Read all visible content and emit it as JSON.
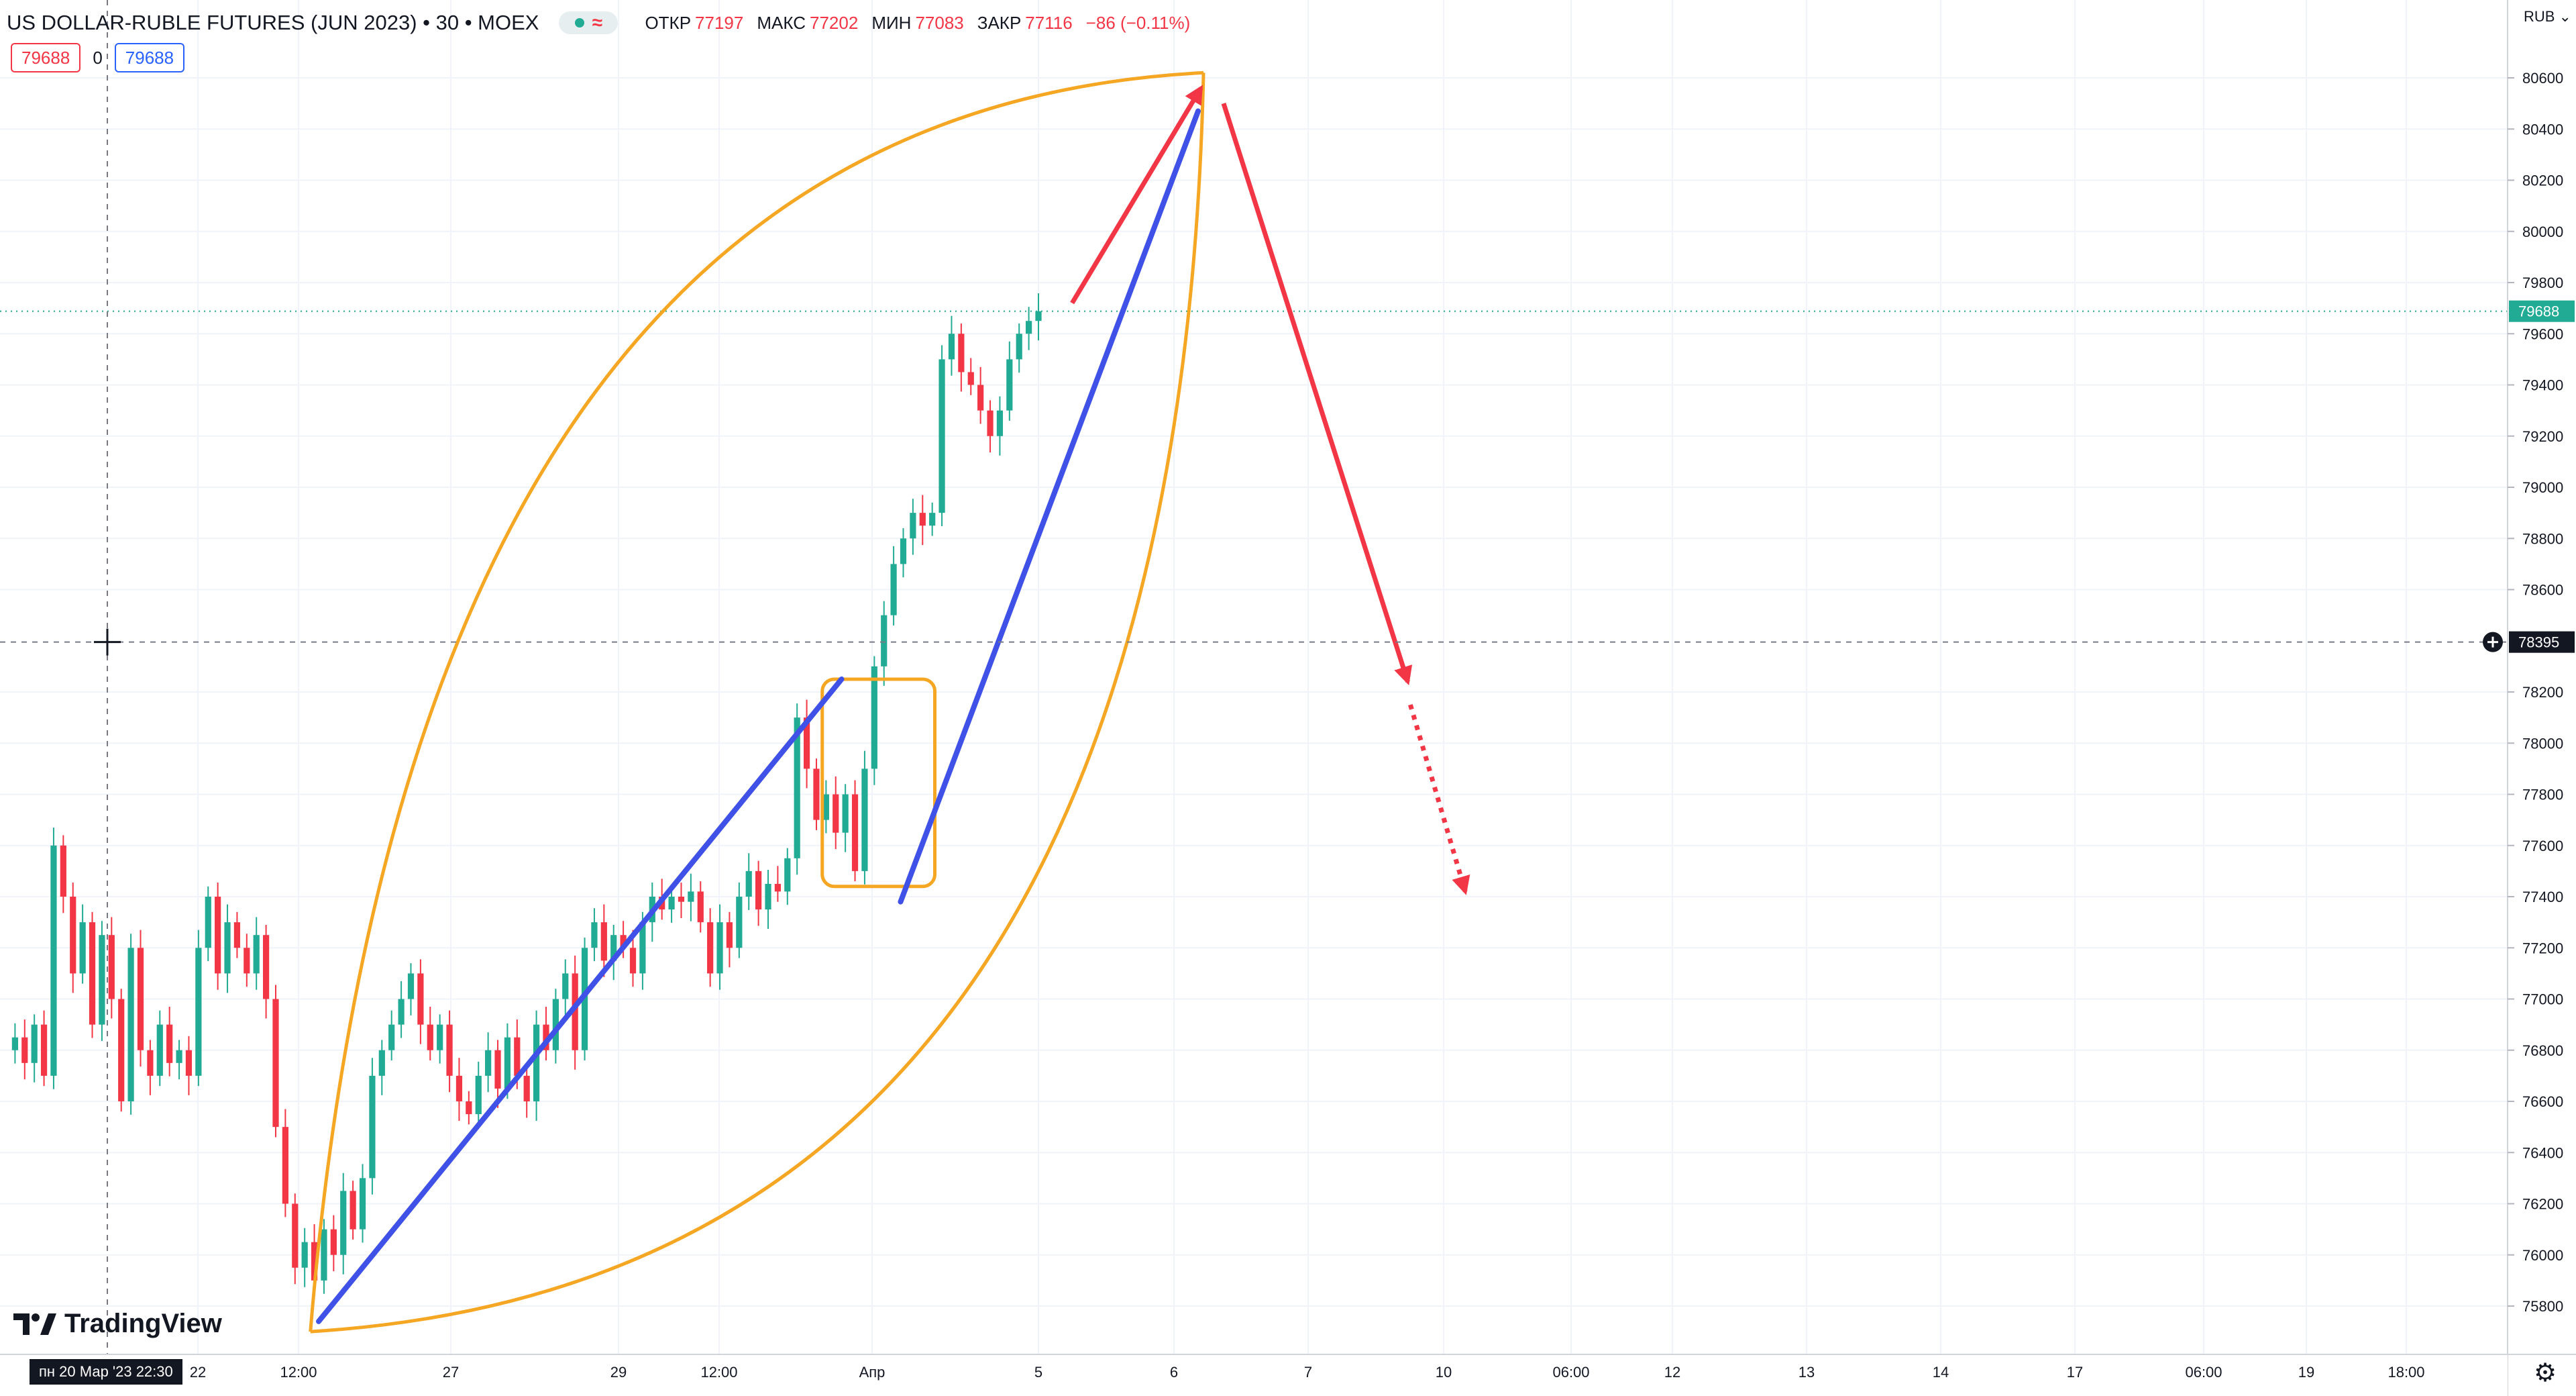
{
  "header": {
    "title": "US DOLLAR-RUBLE FUTURES (JUN 2023) • 30 • MOEX",
    "approx_symbol": "≈",
    "ohlc": [
      {
        "label": "ОТКР",
        "value": "77197"
      },
      {
        "label": "МАКС",
        "value": "77202"
      },
      {
        "label": "МИН",
        "value": "77083"
      },
      {
        "label": "ЗАКР",
        "value": "77116"
      }
    ],
    "change": "−86 (−0.11%)"
  },
  "order_boxes": {
    "sell": "79688",
    "spread": "0",
    "buy": "79688"
  },
  "branding": {
    "logo_text": "TradingView"
  },
  "crosshair": {
    "time_label": "пн 20 Мар '23   22:30",
    "price_label": "78395"
  },
  "colors": {
    "up": "#22ab94",
    "down": "#f23645",
    "grid": "#f0f3fa",
    "orange": "#f5a623",
    "blue": "#3f51e6",
    "red": "#f23645"
  },
  "chart_data": {
    "type": "candlestick",
    "symbol": "US DOLLAR-RUBLE FUTURES (JUN 2023)",
    "interval": "30",
    "exchange": "MOEX",
    "currency": "RUB",
    "last_price": 79688,
    "y_ticks": [
      80600,
      80400,
      80200,
      80000,
      79800,
      79600,
      79400,
      79200,
      79000,
      78800,
      78600,
      78200,
      78000,
      77800,
      77600,
      77400,
      77200,
      77000,
      76800,
      76600,
      76400,
      76200,
      76000,
      75800
    ],
    "y_range": [
      75600,
      80750
    ],
    "x_ticks": [
      "22",
      "12:00",
      "27",
      "29",
      "12:00",
      "Апр",
      "5",
      "6",
      "7",
      "10",
      "06:00",
      "12",
      "13",
      "14",
      "17",
      "06:00",
      "19",
      "18:00"
    ],
    "price_path": [
      76800,
      76850,
      76750,
      76900,
      76700,
      77600,
      77400,
      77100,
      77300,
      76900,
      77250,
      77000,
      76600,
      77200,
      76800,
      76700,
      76900,
      76750,
      76800,
      76700,
      77200,
      77400,
      77100,
      77300,
      77200,
      77100,
      77250,
      77000,
      76500,
      76200,
      75950,
      76050,
      75900,
      76100,
      76000,
      76250,
      76100,
      76300,
      76700,
      76800,
      76900,
      77000,
      77100,
      76900,
      76800,
      76900,
      76700,
      76600,
      76550,
      76700,
      76800,
      76650,
      76850,
      76700,
      76600,
      76900,
      76800,
      77000,
      77100,
      76800,
      77200,
      77300,
      77150,
      77250,
      77200,
      77100,
      77300,
      77400,
      77350,
      77400,
      77380,
      77420,
      77300,
      77100,
      77300,
      77200,
      77400,
      77500,
      77350,
      77450,
      77420,
      77550,
      78100,
      77900,
      77700,
      77800,
      77650,
      77800,
      77500,
      77900,
      78300,
      78500,
      78700,
      78800,
      78900,
      78850,
      78900,
      79500,
      79600,
      79450,
      79400,
      79300,
      79200,
      79300,
      79500,
      79600,
      79650,
      79688
    ],
    "annotations": [
      {
        "type": "arc",
        "color": "orange",
        "points": [
          [
            0.1205,
            75700
          ],
          [
            0.4672,
            80620
          ]
        ]
      },
      {
        "type": "arc",
        "color": "orange",
        "points": [
          [
            0.1205,
            75700
          ],
          [
            0.4672,
            80620
          ]
        ]
      },
      {
        "type": "rectangle",
        "color": "orange",
        "from": [
          0.3192,
          78250
        ],
        "to": [
          0.3629,
          77440
        ]
      },
      {
        "type": "trendline",
        "color": "blue",
        "from": [
          0.1237,
          75740
        ],
        "to": [
          0.3267,
          78250
        ]
      },
      {
        "type": "trendline",
        "color": "blue",
        "from": [
          0.3496,
          77380
        ],
        "to": [
          0.4651,
          80470
        ]
      },
      {
        "type": "arrow",
        "color": "red",
        "from": [
          0.4162,
          79720
        ],
        "to": [
          0.4662,
          80560
        ]
      },
      {
        "type": "arrow",
        "color": "red",
        "from": [
          0.475,
          80500
        ],
        "to": [
          0.5465,
          78240
        ]
      },
      {
        "type": "arrow",
        "color": "red",
        "style": "dotted",
        "from": [
          0.5475,
          78150
        ],
        "to": [
          0.5688,
          77420
        ]
      }
    ]
  }
}
